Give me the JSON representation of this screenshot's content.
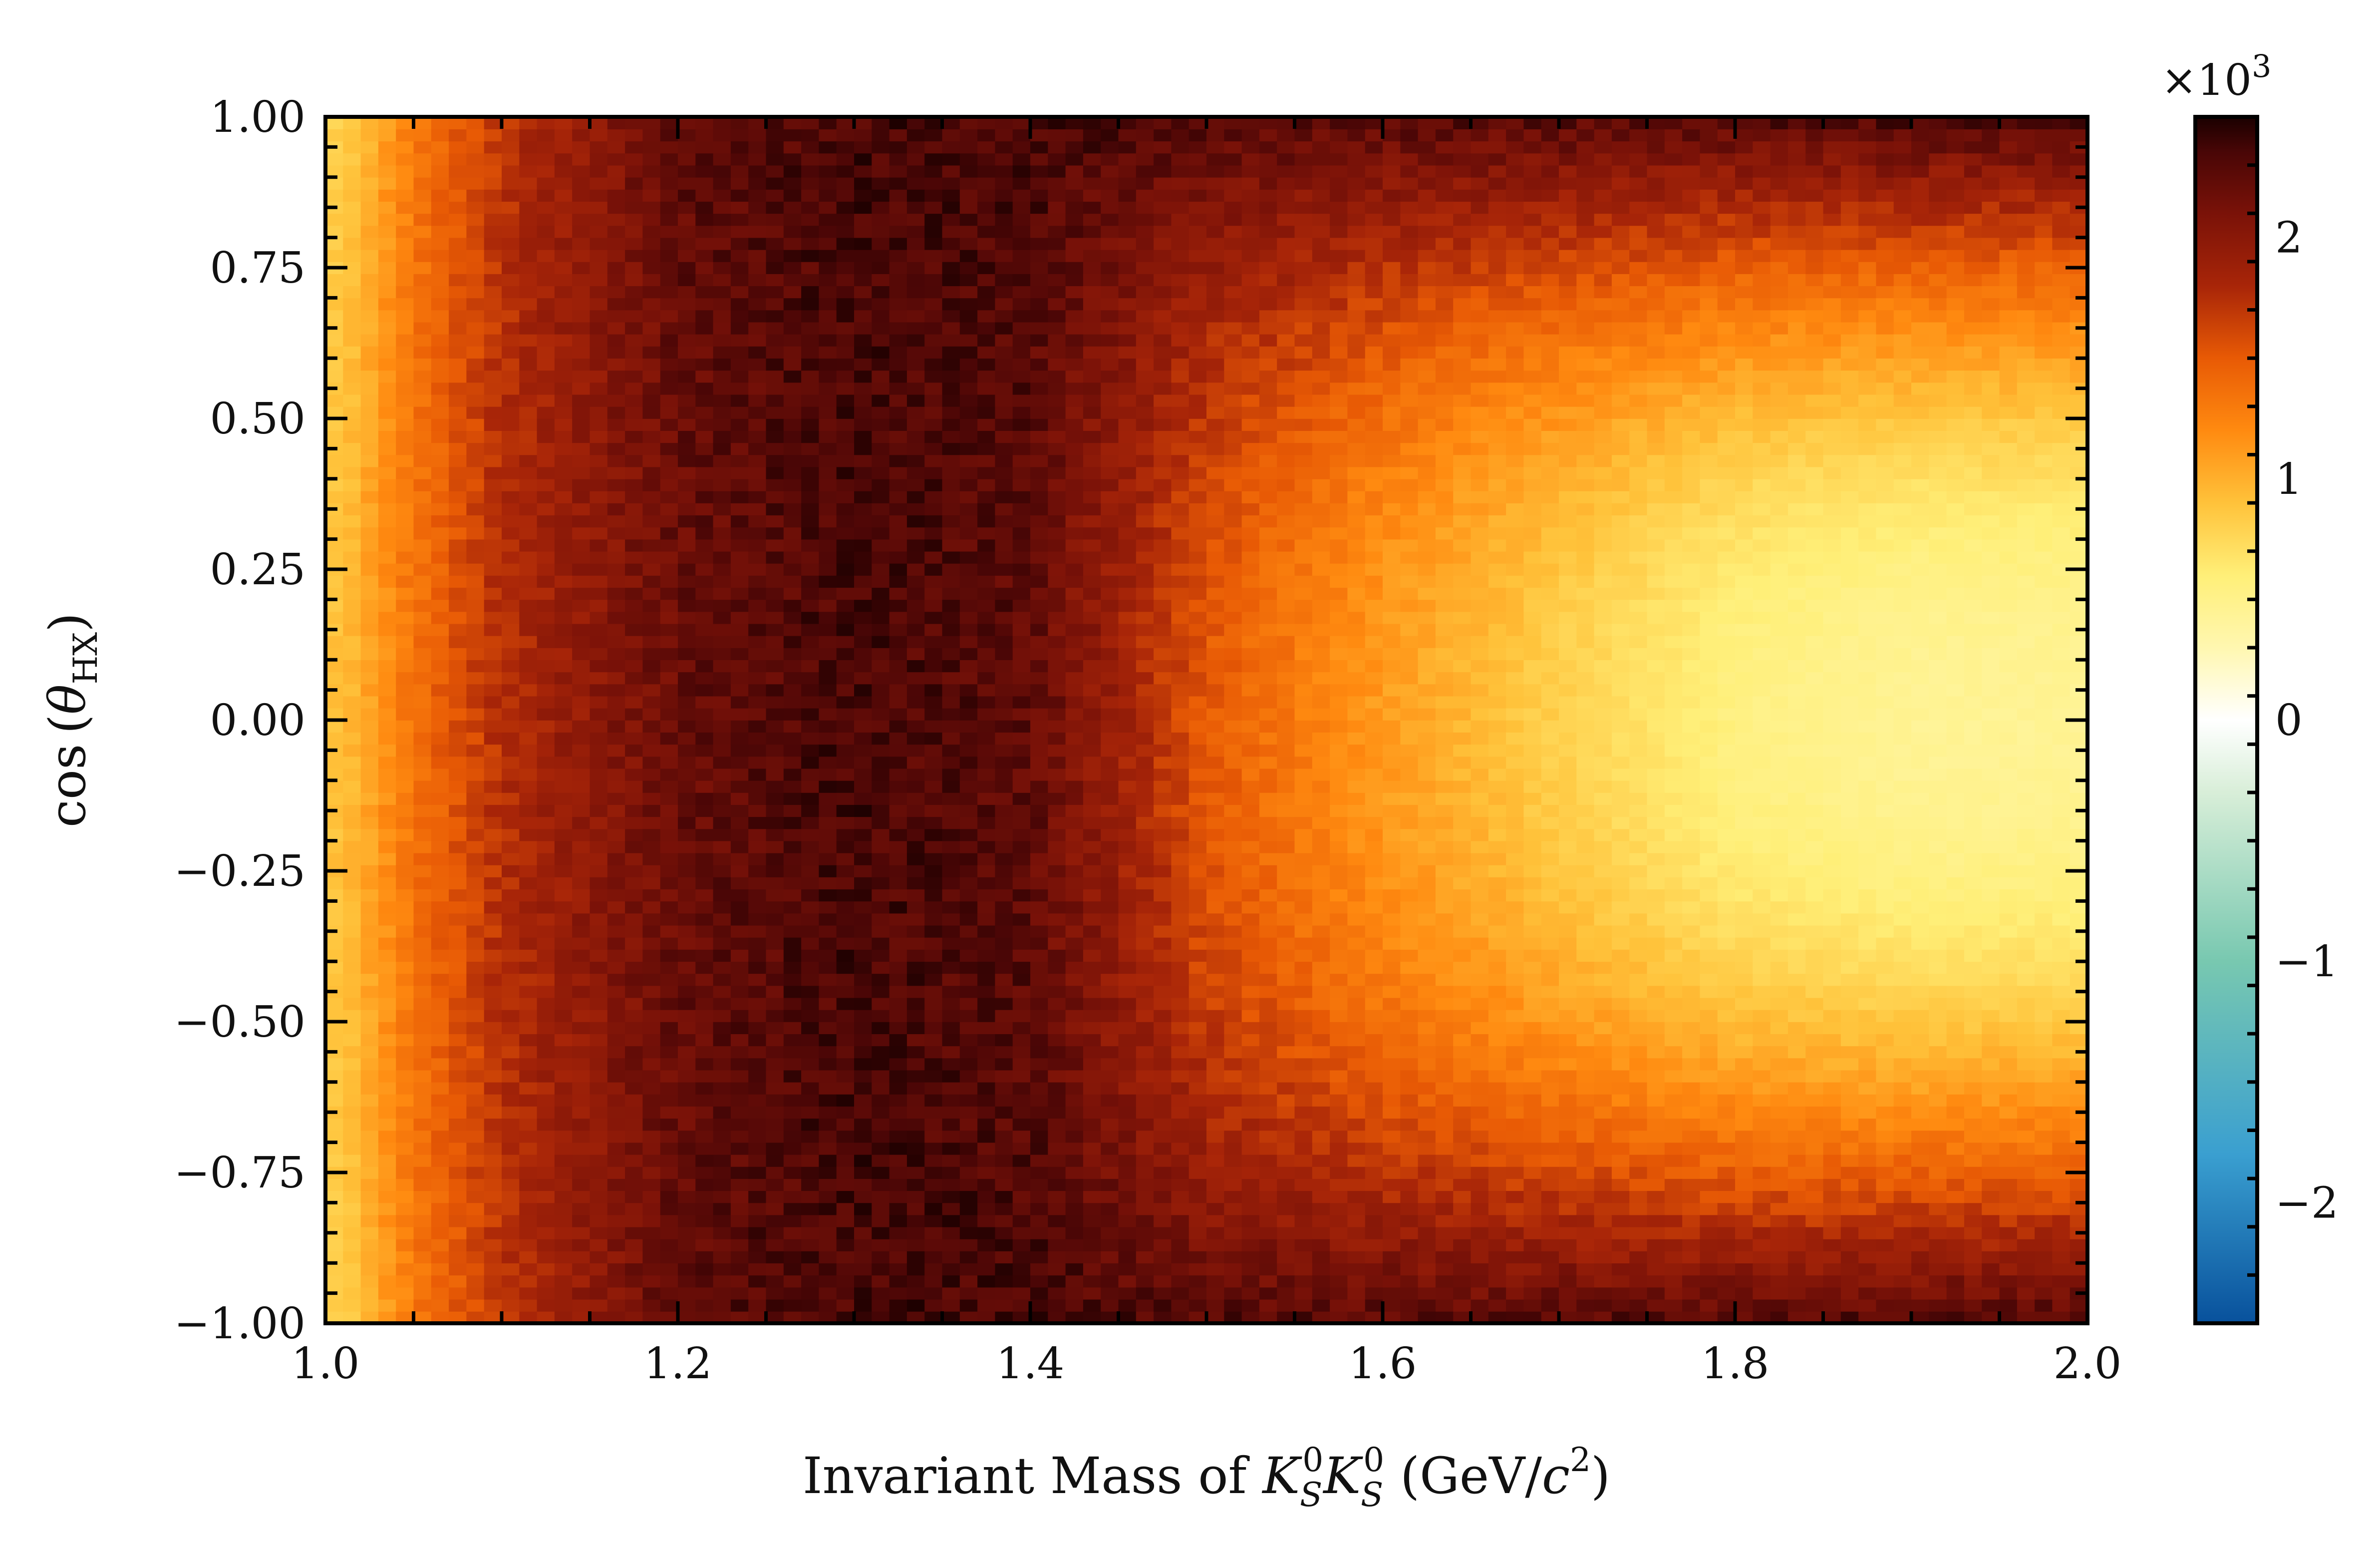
{
  "chart_data": {
    "type": "heatmap",
    "title": "",
    "xlabel": "Invariant Mass of K_S^0 K_S^0 (GeV/c^2)",
    "xlabel_parts": {
      "prefix": "Invariant Mass of ",
      "k": "K",
      "sub": "S",
      "sup": "0",
      "unit_open": " (GeV/",
      "c": "c",
      "c_sup": "2",
      "unit_close": ")"
    },
    "ylabel": "cos (θ_HX)",
    "ylabel_parts": {
      "func": "cos",
      "open": "(",
      "theta": "θ",
      "sub": "HX",
      "close": ")"
    },
    "xlim": [
      1.0,
      2.0
    ],
    "ylim": [
      -1.0,
      1.0
    ],
    "x_ticks": [
      "1.0",
      "1.2",
      "1.4",
      "1.6",
      "1.8",
      "2.0"
    ],
    "y_ticks": [
      "1.00",
      "0.75",
      "0.50",
      "0.25",
      "0.00",
      "−0.25",
      "−0.50",
      "−0.75",
      "−1.00"
    ],
    "x_bins": 100,
    "y_bins": 100,
    "bin_counts_summary": [
      {
        "x": 1.01,
        "cos_theta_center": 900,
        "cos_theta_edge": 800
      },
      {
        "x": 1.05,
        "cos_theta_center": 1350,
        "cos_theta_edge": 1300
      },
      {
        "x": 1.1,
        "cos_theta_center": 1750,
        "cos_theta_edge": 1700
      },
      {
        "x": 1.2,
        "cos_theta_center": 2200,
        "cos_theta_edge": 2250
      },
      {
        "x": 1.3,
        "cos_theta_center": 2350,
        "cos_theta_edge": 2350
      },
      {
        "x": 1.4,
        "cos_theta_center": 2250,
        "cos_theta_edge": 2350
      },
      {
        "x": 1.5,
        "cos_theta_center": 1500,
        "cos_theta_edge": 2300
      },
      {
        "x": 1.6,
        "cos_theta_center": 1100,
        "cos_theta_edge": 2300
      },
      {
        "x": 1.7,
        "cos_theta_center": 800,
        "cos_theta_edge": 2300
      },
      {
        "x": 1.8,
        "cos_theta_center": 550,
        "cos_theta_edge": 2300
      },
      {
        "x": 1.9,
        "cos_theta_center": 450,
        "cos_theta_edge": 2350
      },
      {
        "x": 2.0,
        "cos_theta_center": 450,
        "cos_theta_edge": 2350
      }
    ],
    "colorbar": {
      "range": [
        -2500,
        2500
      ],
      "multiplier_label": "×10",
      "multiplier_exp": "3",
      "ticks": [
        "2",
        "1",
        "0",
        "−1",
        "−2"
      ],
      "tick_values": [
        2,
        1,
        0,
        -1,
        -2
      ],
      "colormap": [
        {
          "v": -2.5,
          "color": "#08519c"
        },
        {
          "v": -1.8,
          "color": "#3a9fd0"
        },
        {
          "v": -1.0,
          "color": "#78c8b0"
        },
        {
          "v": -0.3,
          "color": "#d8eed8"
        },
        {
          "v": 0.0,
          "color": "#ffffff"
        },
        {
          "v": 0.3,
          "color": "#fff7b0"
        },
        {
          "v": 0.6,
          "color": "#ffef78"
        },
        {
          "v": 0.9,
          "color": "#ffc23a"
        },
        {
          "v": 1.2,
          "color": "#ff8a10"
        },
        {
          "v": 1.5,
          "color": "#e85a05"
        },
        {
          "v": 1.8,
          "color": "#a82508"
        },
        {
          "v": 2.1,
          "color": "#7a1208"
        },
        {
          "v": 2.35,
          "color": "#4a0606"
        },
        {
          "v": 2.5,
          "color": "#1a0000"
        }
      ]
    },
    "grid": false,
    "legend": "none"
  }
}
